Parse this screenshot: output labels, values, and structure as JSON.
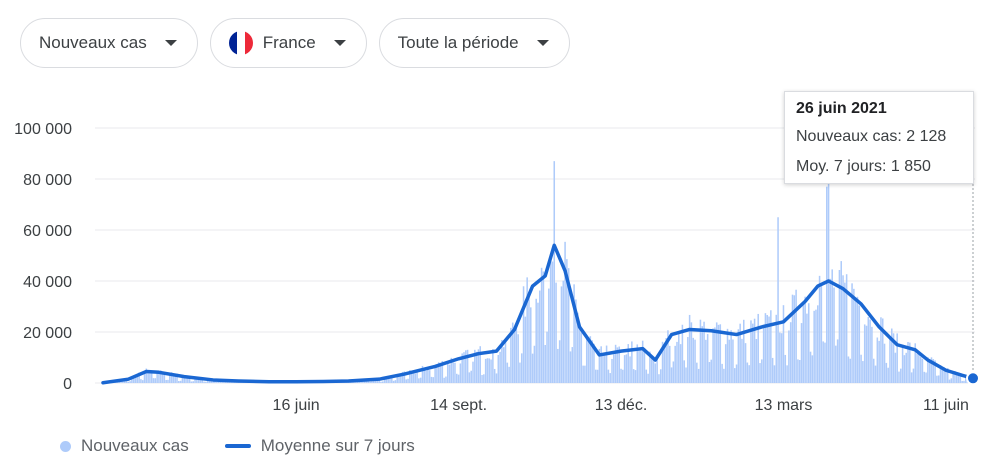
{
  "filters": {
    "metric": "Nouveaux cas",
    "country": "France",
    "period": "Toute la période"
  },
  "tooltip": {
    "date": "26 juin 2021",
    "new_cases_line": "Nouveaux cas: 2 128",
    "avg_line": "Moy. 7 jours: 1 850"
  },
  "legend": {
    "bars": "Nouveaux cas",
    "line": "Moyenne sur 7 jours"
  },
  "colors": {
    "bars": "#aecbfa",
    "line": "#1a67d2",
    "grid": "#e8eaed",
    "flag_blue": "#002395",
    "flag_white": "#ffffff",
    "flag_red": "#ed2939"
  },
  "chart_data": {
    "type": "bar",
    "title": "",
    "xlabel": "",
    "ylabel": "",
    "ylim": [
      0,
      100000
    ],
    "y_ticks": [
      0,
      20000,
      40000,
      60000,
      80000,
      100000
    ],
    "y_tick_labels": [
      "0",
      "20 000",
      "40 000",
      "60 000",
      "80 000",
      "100 000"
    ],
    "x_range": [
      "2020-03-01",
      "2021-06-26"
    ],
    "x_ticks": [
      "2020-06-16",
      "2020-09-14",
      "2020-12-13",
      "2021-03-13",
      "2021-06-11"
    ],
    "x_tick_labels": [
      "16 juin",
      "14 sept.",
      "13 déc.",
      "13 mars",
      "11 juin"
    ],
    "grid": true,
    "legend_position": "bottom-left",
    "series": [
      {
        "name": "Moyenne sur 7 jours",
        "type": "line",
        "x": [
          "2020-03-01",
          "2020-03-15",
          "2020-03-25",
          "2020-04-01",
          "2020-04-15",
          "2020-05-01",
          "2020-05-15",
          "2020-06-01",
          "2020-06-16",
          "2020-07-01",
          "2020-07-15",
          "2020-08-01",
          "2020-08-15",
          "2020-09-01",
          "2020-09-14",
          "2020-09-25",
          "2020-10-05",
          "2020-10-15",
          "2020-10-25",
          "2020-11-01",
          "2020-11-06",
          "2020-11-12",
          "2020-11-20",
          "2020-12-01",
          "2020-12-13",
          "2020-12-25",
          "2021-01-01",
          "2021-01-10",
          "2021-01-20",
          "2021-02-01",
          "2021-02-15",
          "2021-03-01",
          "2021-03-13",
          "2021-03-25",
          "2021-04-01",
          "2021-04-07",
          "2021-04-15",
          "2021-04-25",
          "2021-05-05",
          "2021-05-15",
          "2021-05-25",
          "2021-06-01",
          "2021-06-11",
          "2021-06-20",
          "2021-06-26"
        ],
        "values": [
          100,
          1500,
          4500,
          4200,
          2500,
          1200,
          800,
          500,
          500,
          600,
          800,
          1500,
          3500,
          6500,
          9500,
          11500,
          12500,
          21000,
          38000,
          42000,
          54000,
          44000,
          22000,
          11000,
          12500,
          13500,
          9000,
          19000,
          21000,
          20500,
          19000,
          22000,
          24000,
          32000,
          38000,
          40000,
          37000,
          31000,
          22000,
          15000,
          13000,
          9000,
          5000,
          3000,
          1850
        ]
      },
      {
        "name": "Nouveaux cas",
        "type": "bar",
        "note": "daily values plotted as bars; spikes",
        "spikes": [
          {
            "x": "2020-11-06",
            "y": 87000
          },
          {
            "x": "2021-03-10",
            "y": 65000
          },
          {
            "x": "2021-04-06",
            "y": 77000
          },
          {
            "x": "2021-04-07",
            "y": 84000
          }
        ],
        "last_value": 2128
      }
    ]
  }
}
